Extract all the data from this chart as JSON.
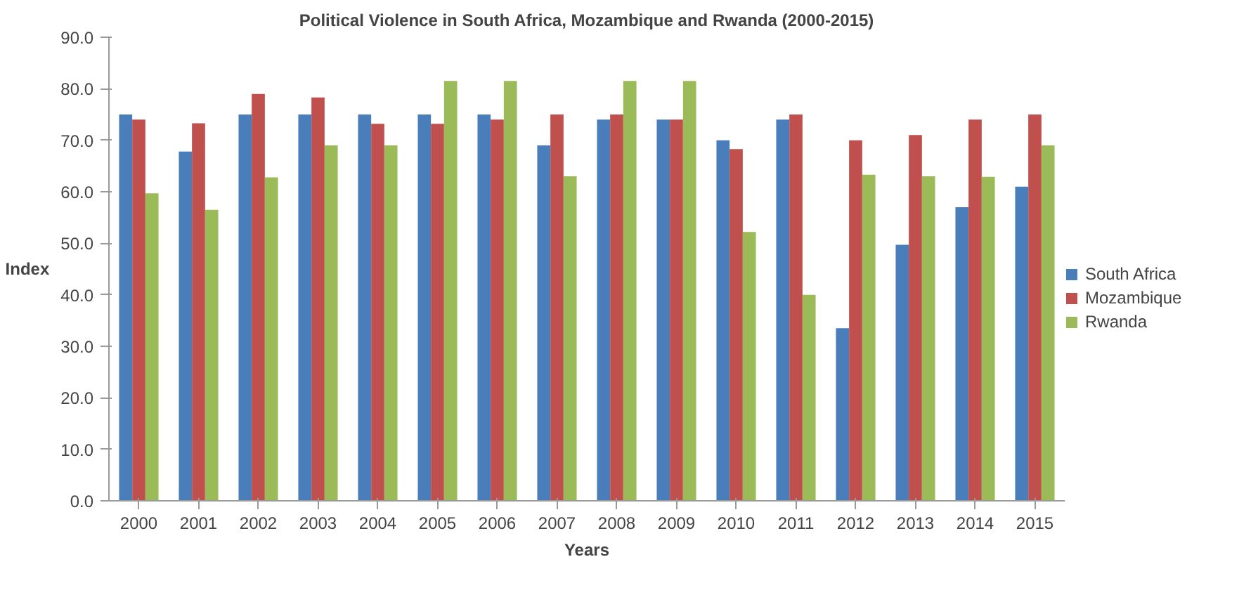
{
  "chart_data": {
    "type": "bar",
    "title": "Political Violence in South Africa, Mozambique and Rwanda (2000-2015)",
    "xlabel": "Years",
    "ylabel": "Index",
    "categories": [
      "2000",
      "2001",
      "2002",
      "2003",
      "2004",
      "2005",
      "2006",
      "2007",
      "2008",
      "2009",
      "2010",
      "2011",
      "2012",
      "2013",
      "2014",
      "2015"
    ],
    "series": [
      {
        "name": "South Africa",
        "color": "#4a7ebb",
        "values": [
          75,
          67.8,
          75,
          75,
          75,
          75,
          75,
          69,
          74,
          74,
          70,
          74,
          33.5,
          49.7,
          57,
          61
        ]
      },
      {
        "name": "Mozambique",
        "color": "#c0504d",
        "values": [
          74,
          73.3,
          79,
          78.3,
          73.2,
          73.2,
          74,
          75,
          75,
          74,
          68.3,
          75,
          70,
          71,
          74,
          75
        ]
      },
      {
        "name": "Rwanda",
        "color": "#9bbb59",
        "values": [
          59.7,
          56.5,
          62.8,
          69,
          69,
          81.5,
          81.5,
          63,
          81.5,
          81.5,
          52.2,
          40,
          63.3,
          63,
          62.9,
          69
        ]
      }
    ],
    "ylim": [
      0,
      90
    ],
    "yticks": [
      {
        "value": 0,
        "label": "0.0"
      },
      {
        "value": 10,
        "label": "10.0"
      },
      {
        "value": 20,
        "label": "20.0"
      },
      {
        "value": 30,
        "label": "30.0"
      },
      {
        "value": 40,
        "label": "40.0"
      },
      {
        "value": 50,
        "label": "50.0"
      },
      {
        "value": 60,
        "label": "60.0"
      },
      {
        "value": 70,
        "label": "70.0"
      },
      {
        "value": 80,
        "label": "80.0"
      },
      {
        "value": 90,
        "label": "90.0"
      }
    ],
    "grid": false,
    "legend": "right"
  }
}
